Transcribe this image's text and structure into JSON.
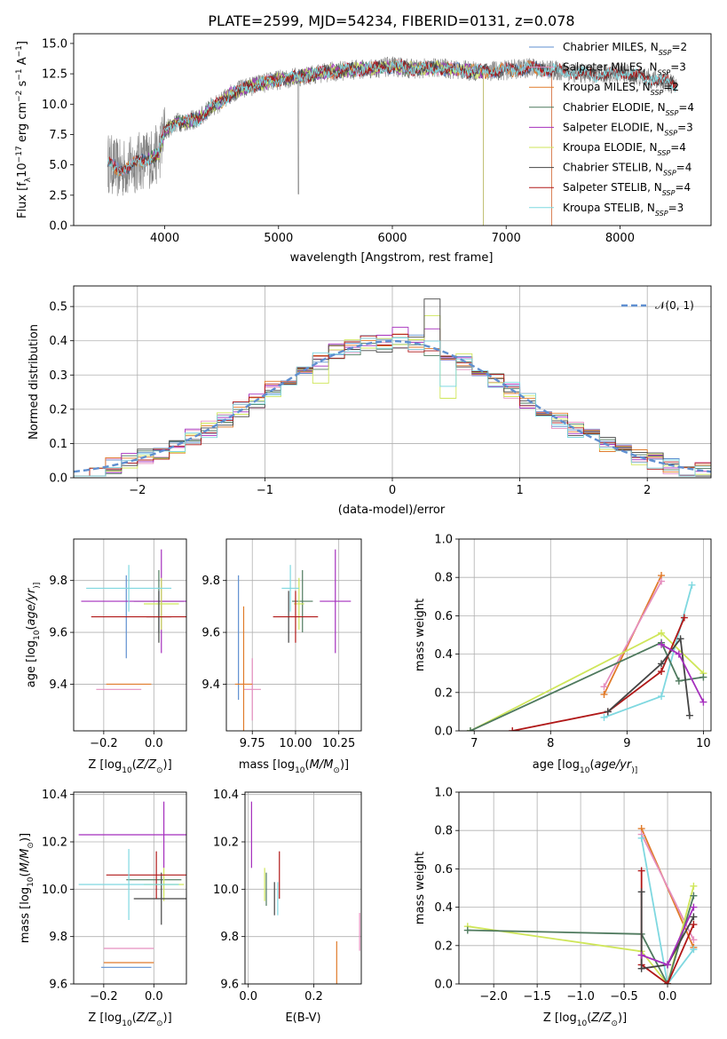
{
  "title": "PLATE=2599, MJD=54234, FIBERID=0131, z=0.078",
  "colors": {
    "chabrier_miles": "#5f8fd0",
    "salpeter_miles": "#e58fbf",
    "kroupa_miles": "#e07b2a",
    "chabrier_elodie": "#4f7a5e",
    "salpeter_elodie": "#a52fbd",
    "kroupa_elodie": "#cfe65a",
    "chabrier_stelib": "#444444",
    "salpeter_stelib": "#b01818",
    "kroupa_stelib": "#7fd8e0",
    "data": "#808080",
    "gaussian": "#5f8fd0"
  },
  "chart_data": [
    {
      "id": "spectrum",
      "type": "line",
      "title": "PLATE=2599, MJD=54234, FIBERID=0131, z=0.078",
      "xlabel": "wavelength [Angstrom, rest frame]",
      "ylabel": "Flux [f",
      "ylabel_parts": [
        "Flux [f",
        "λ",
        "10",
        "−17",
        " erg cm",
        "−2",
        " s",
        "−1",
        " A",
        "−1",
        "]"
      ],
      "xlim": [
        3200,
        8800
      ],
      "ylim": [
        0,
        15.8
      ],
      "xticks": [
        4000,
        5000,
        6000,
        7000,
        8000
      ],
      "yticks": [
        0.0,
        2.5,
        5.0,
        7.5,
        10.0,
        12.5,
        15.0
      ],
      "legend_position": "upper-right",
      "legend": [
        {
          "label": "Chabrier MILES, N",
          "sub": "SSP",
          "val": "=2",
          "color_key": "chabrier_miles"
        },
        {
          "label": "Salpeter MILES, N",
          "sub": "SSP",
          "val": "=3",
          "color_key": "salpeter_miles"
        },
        {
          "label": "Kroupa MILES, N",
          "sub": "SSP",
          "val": "=2",
          "color_key": "kroupa_miles"
        },
        {
          "label": "Chabrier ELODIE, N",
          "sub": "SSP",
          "val": "=4",
          "color_key": "chabrier_elodie"
        },
        {
          "label": "Salpeter ELODIE, N",
          "sub": "SSP",
          "val": "=3",
          "color_key": "salpeter_elodie"
        },
        {
          "label": "Kroupa ELODIE, N",
          "sub": "SSP",
          "val": "=4",
          "color_key": "kroupa_elodie"
        },
        {
          "label": "Chabrier STELIB, N",
          "sub": "SSP",
          "val": "=4",
          "color_key": "chabrier_stelib"
        },
        {
          "label": "Salpeter STELIB, N",
          "sub": "SSP",
          "val": "=4",
          "color_key": "salpeter_stelib"
        },
        {
          "label": "Kroupa STELIB, N",
          "sub": "SSP",
          "val": "=3",
          "color_key": "kroupa_stelib"
        }
      ],
      "continuum": {
        "x": [
          3500,
          3600,
          3700,
          3800,
          3900,
          3950,
          4000,
          4100,
          4200,
          4300,
          4400,
          4500,
          4600,
          4800,
          5000,
          5200,
          5400,
          5600,
          5800,
          6000,
          6200,
          6400,
          6600,
          6800,
          7000,
          7200,
          7400,
          7600,
          7800,
          8000,
          8200,
          8400,
          8500
        ],
        "y": [
          5.2,
          4.6,
          4.9,
          5.4,
          5.6,
          6.0,
          7.8,
          8.5,
          8.6,
          8.8,
          9.7,
          10.2,
          11.0,
          11.6,
          12.0,
          12.3,
          12.6,
          12.8,
          12.9,
          13.1,
          12.9,
          13.0,
          12.8,
          12.7,
          12.8,
          13.0,
          12.8,
          12.6,
          12.4,
          12.6,
          12.2,
          11.9,
          11.5
        ]
      },
      "model_x_ranges": {
        "chabrier_miles": [
          3500,
          7400
        ],
        "salpeter_miles": [
          3500,
          7400
        ],
        "kroupa_miles": [
          3500,
          7400
        ],
        "chabrier_elodie": [
          3850,
          6800
        ],
        "salpeter_elodie": [
          3850,
          6800
        ],
        "kroupa_elodie": [
          3850,
          6800
        ],
        "chabrier_stelib": [
          3500,
          8500
        ],
        "salpeter_stelib": [
          3500,
          8500
        ],
        "kroupa_stelib": [
          3500,
          8500
        ]
      },
      "data_noise_amplitude": 1.4,
      "data_dips_x": [
        5175,
        6800
      ]
    },
    {
      "id": "residuals",
      "type": "histogram",
      "xlabel": "(data-model)/error",
      "ylabel": "Normed distribution",
      "xlim": [
        -2.5,
        2.5
      ],
      "ylim": [
        0,
        0.56
      ],
      "xticks": [
        -2,
        -1,
        0,
        1,
        2
      ],
      "yticks": [
        0.0,
        0.1,
        0.2,
        0.3,
        0.4,
        0.5
      ],
      "grid": true,
      "legend_position": "upper-right",
      "legend": [
        {
          "label": "𝒩(0, 1)",
          "color_key": "gaussian",
          "style": "dashed"
        }
      ],
      "bin_width": 0.125,
      "gaussian": {
        "mean": 0,
        "sigma": 1
      },
      "deviations": {
        "salpeter_elodie": {
          "0.25": 0.05,
          "-0.5": 0.03,
          "0.0": 0.04
        },
        "kroupa_elodie": {
          "0.25": 0.11,
          "0.375": -0.12,
          "-0.625": -0.06
        },
        "chabrier_stelib": {
          "0.25": 0.13,
          "-0.125": -0.03
        },
        "kroupa_stelib": {
          "0.375": -0.09
        }
      }
    },
    {
      "id": "age_vs_Z",
      "type": "errorbar",
      "xlabel": "Z [log",
      "xlabel_parts": [
        "Z [log",
        "10",
        "(",
        "Z/Z",
        "⊙",
        ")]"
      ],
      "ylabel_parts": [
        "age  [log",
        "10",
        "(",
        "age/yr",
        ")]"
      ],
      "xlim": [
        -0.32,
        0.13
      ],
      "ylim": [
        9.22,
        9.96
      ],
      "xticks": [
        -0.2,
        0.0
      ],
      "xticklabels": [
        "−0.2",
        "0.0"
      ],
      "yticks": [
        9.4,
        9.6,
        9.8
      ],
      "points": [
        {
          "c": "chabrier_miles",
          "x": -0.11,
          "y": 9.66,
          "xerr": 0.0,
          "yerr": 0.16
        },
        {
          "c": "salpeter_miles",
          "x": -0.14,
          "y": 9.38,
          "xerr": 0.09,
          "yerr": 0.0
        },
        {
          "c": "kroupa_miles",
          "x": -0.1,
          "y": 9.4,
          "xerr": 0.09,
          "yerr": 0.0
        },
        {
          "c": "chabrier_elodie",
          "x": 0.02,
          "y": 9.72,
          "xerr": 0.1,
          "yerr": 0.12
        },
        {
          "c": "salpeter_elodie",
          "x": 0.03,
          "y": 9.72,
          "xerr": 0.32,
          "yerr": 0.2
        },
        {
          "c": "kroupa_elodie",
          "x": 0.03,
          "y": 9.71,
          "xerr": 0.07,
          "yerr": 0.1
        },
        {
          "c": "chabrier_stelib",
          "x": 0.02,
          "y": 9.66,
          "xerr": 0.05,
          "yerr": 0.1
        },
        {
          "c": "salpeter_stelib",
          "x": -0.05,
          "y": 9.66,
          "xerr": 0.2,
          "yerr": 0.0
        },
        {
          "c": "kroupa_stelib",
          "x": -0.1,
          "y": 9.77,
          "xerr": 0.17,
          "yerr": 0.09
        }
      ]
    },
    {
      "id": "age_vs_mass",
      "type": "errorbar",
      "xlabel_parts": [
        "mass [log",
        "10",
        "(",
        "M/M",
        "⊙",
        ")]"
      ],
      "xlim": [
        9.6,
        10.38
      ],
      "ylim": [
        9.22,
        9.96
      ],
      "xticks": [
        9.75,
        10.0,
        10.25
      ],
      "xticklabels": [
        "9.75",
        "10.00",
        "10.25"
      ],
      "yticks": [
        9.4,
        9.6,
        9.8
      ],
      "points": [
        {
          "c": "chabrier_miles",
          "x": 9.67,
          "y": 9.58,
          "xerr": 0.0,
          "yerr": 0.24
        },
        {
          "c": "salpeter_miles",
          "x": 9.75,
          "y": 9.38,
          "xerr": 0.05,
          "yerr": 0.12
        },
        {
          "c": "kroupa_miles",
          "x": 9.7,
          "y": 9.4,
          "xerr": 0.05,
          "yerr": 0.3
        },
        {
          "c": "chabrier_elodie",
          "x": 10.04,
          "y": 9.72,
          "xerr": 0.06,
          "yerr": 0.12
        },
        {
          "c": "salpeter_elodie",
          "x": 10.23,
          "y": 9.72,
          "xerr": 0.09,
          "yerr": 0.2
        },
        {
          "c": "kroupa_elodie",
          "x": 10.02,
          "y": 9.71,
          "xerr": 0.03,
          "yerr": 0.1
        },
        {
          "c": "chabrier_stelib",
          "x": 9.96,
          "y": 9.66,
          "xerr": 0.0,
          "yerr": 0.1
        },
        {
          "c": "salpeter_stelib",
          "x": 10.0,
          "y": 9.66,
          "xerr": 0.13,
          "yerr": 0.1
        },
        {
          "c": "kroupa_stelib",
          "x": 9.97,
          "y": 9.77,
          "xerr": 0.05,
          "yerr": 0.09
        }
      ]
    },
    {
      "id": "mass_weight_vs_age",
      "type": "line",
      "xlabel_parts": [
        "age  [log",
        "10",
        "(",
        "age/yr",
        ")]"
      ],
      "ylabel": "mass weight",
      "xlim": [
        6.8,
        10.1
      ],
      "ylim": [
        0,
        1
      ],
      "xticks": [
        7,
        8,
        9,
        10
      ],
      "yticks": [
        0.0,
        0.2,
        0.4,
        0.6,
        0.8,
        1.0
      ],
      "grid": true,
      "series": [
        {
          "c": "kroupa_miles",
          "x": [
            8.7,
            9.45
          ],
          "y": [
            0.19,
            0.81
          ]
        },
        {
          "c": "salpeter_miles",
          "x": [
            8.7,
            9.45
          ],
          "y": [
            0.23,
            0.78
          ]
        },
        {
          "c": "kroupa_stelib",
          "x": [
            8.7,
            9.45,
            9.85
          ],
          "y": [
            0.07,
            0.18,
            0.76
          ]
        },
        {
          "c": "kroupa_elodie",
          "x": [
            6.95,
            9.45,
            10.0
          ],
          "y": [
            0.0,
            0.51,
            0.3
          ]
        },
        {
          "c": "chabrier_elodie",
          "x": [
            6.95,
            9.45,
            9.68,
            10.0
          ],
          "y": [
            0.0,
            0.46,
            0.26,
            0.28
          ]
        },
        {
          "c": "salpeter_stelib",
          "x": [
            7.5,
            8.75,
            9.45,
            9.75
          ],
          "y": [
            0.0,
            0.1,
            0.31,
            0.59
          ]
        },
        {
          "c": "chabrier_stelib",
          "x": [
            8.75,
            9.45,
            9.7,
            9.82
          ],
          "y": [
            0.1,
            0.35,
            0.48,
            0.08
          ]
        },
        {
          "c": "salpeter_elodie",
          "x": [
            9.45,
            9.68,
            10.0
          ],
          "y": [
            0.45,
            0.4,
            0.15
          ]
        }
      ]
    },
    {
      "id": "mass_vs_Z",
      "type": "errorbar",
      "xlabel_parts": [
        "Z [log",
        "10",
        "(",
        "Z/Z",
        "⊙",
        ")]"
      ],
      "ylabel_parts": [
        "mass [log",
        "10",
        "(",
        "M/M",
        "⊙",
        ")]"
      ],
      "xlim": [
        -0.32,
        0.13
      ],
      "ylim": [
        9.6,
        10.41
      ],
      "xticks": [
        -0.2,
        0.0
      ],
      "xticklabels": [
        "−0.2",
        "0.0"
      ],
      "yticks": [
        9.6,
        9.8,
        10.0,
        10.2,
        10.4
      ],
      "points": [
        {
          "c": "chabrier_miles",
          "x": -0.11,
          "y": 9.67,
          "xerr": 0.1,
          "yerr": 0.0
        },
        {
          "c": "salpeter_miles",
          "x": -0.1,
          "y": 9.75,
          "xerr": 0.1,
          "yerr": 0.0
        },
        {
          "c": "kroupa_miles",
          "x": -0.1,
          "y": 9.69,
          "xerr": 0.1,
          "yerr": 0.0
        },
        {
          "c": "chabrier_elodie",
          "x": 0.0,
          "y": 10.04,
          "xerr": 0.11,
          "yerr": 0.0
        },
        {
          "c": "salpeter_elodie",
          "x": 0.04,
          "y": 10.23,
          "xerr": 0.34,
          "yerr": 0.14
        },
        {
          "c": "kroupa_elodie",
          "x": 0.04,
          "y": 10.02,
          "xerr": 0.08,
          "yerr": 0.07
        },
        {
          "c": "chabrier_stelib",
          "x": 0.03,
          "y": 9.96,
          "xerr": 0.11,
          "yerr": 0.11
        },
        {
          "c": "salpeter_stelib",
          "x": 0.01,
          "y": 10.06,
          "xerr": 0.2,
          "yerr": 0.1
        },
        {
          "c": "kroupa_stelib",
          "x": -0.1,
          "y": 10.02,
          "xerr": 0.2,
          "yerr": 0.15
        }
      ]
    },
    {
      "id": "mass_vs_ebv",
      "type": "errorbar",
      "xlabel": "E(B-V)",
      "xlim": [
        -0.01,
        0.345
      ],
      "ylim": [
        9.6,
        10.41
      ],
      "xticks": [
        0.0,
        0.2
      ],
      "xticklabels": [
        "0.0",
        "0.2"
      ],
      "yticks": [
        9.6,
        9.8,
        10.0,
        10.2,
        10.4
      ],
      "points": [
        {
          "c": "salpeter_elodie",
          "x": 0.01,
          "y": 10.23,
          "xerr": 0.0,
          "yerr": 0.14
        },
        {
          "c": "kroupa_elodie",
          "x": 0.05,
          "y": 10.02,
          "xerr": 0.0,
          "yerr": 0.07
        },
        {
          "c": "chabrier_elodie",
          "x": 0.055,
          "y": 10.0,
          "xerr": 0.0,
          "yerr": 0.07
        },
        {
          "c": "chabrier_stelib",
          "x": 0.08,
          "y": 9.96,
          "xerr": 0.0,
          "yerr": 0.07
        },
        {
          "c": "kroupa_stelib",
          "x": 0.09,
          "y": 9.96,
          "xerr": 0.0,
          "yerr": 0.07
        },
        {
          "c": "salpeter_stelib",
          "x": 0.095,
          "y": 10.06,
          "xerr": 0.0,
          "yerr": 0.1
        },
        {
          "c": "kroupa_miles",
          "x": 0.27,
          "y": 9.68,
          "xerr": 0.0,
          "yerr": 0.1
        },
        {
          "c": "salpeter_miles",
          "x": 0.34,
          "y": 9.82,
          "xerr": 0.0,
          "yerr": 0.08
        }
      ]
    },
    {
      "id": "mass_weight_vs_Z",
      "type": "line",
      "xlabel_parts": [
        "Z [log",
        "10",
        "(",
        "Z/Z",
        "⊙",
        ")]"
      ],
      "ylabel": "mass weight",
      "xlim": [
        -2.4,
        0.5
      ],
      "ylim": [
        0,
        1
      ],
      "xticks": [
        -2.0,
        -1.5,
        -1.0,
        -0.5,
        0.0
      ],
      "xticklabels": [
        "−2.0",
        "−1.5",
        "−1.0",
        "−0.5",
        "0.0"
      ],
      "yticks": [
        0.0,
        0.2,
        0.4,
        0.6,
        0.8,
        1.0
      ],
      "grid": true,
      "series": [
        {
          "c": "kroupa_miles",
          "x": [
            -0.3,
            0.3
          ],
          "y": [
            0.81,
            0.19
          ]
        },
        {
          "c": "salpeter_miles",
          "x": [
            -0.3,
            0.3
          ],
          "y": [
            0.78,
            0.23
          ]
        },
        {
          "c": "kroupa_stelib",
          "x": [
            -0.3,
            0.0,
            0.3
          ],
          "y": [
            0.76,
            0.0,
            0.18
          ]
        },
        {
          "c": "kroupa_elodie",
          "x": [
            -2.3,
            -0.3,
            0.0,
            0.3
          ],
          "y": [
            0.3,
            0.17,
            0.0,
            0.51
          ]
        },
        {
          "c": "chabrier_elodie",
          "x": [
            -2.3,
            -0.3,
            0.0,
            0.3
          ],
          "y": [
            0.28,
            0.26,
            0.0,
            0.46
          ]
        },
        {
          "c": "salpeter_stelib",
          "x": [
            -0.3,
            -0.3,
            0.0,
            0.3
          ],
          "y": [
            0.59,
            0.1,
            0.0,
            0.31
          ]
        },
        {
          "c": "chabrier_stelib",
          "x": [
            -0.3,
            -0.3,
            0.0,
            0.3
          ],
          "y": [
            0.48,
            0.08,
            0.1,
            0.35
          ]
        },
        {
          "c": "salpeter_elodie",
          "x": [
            -0.3,
            0.0,
            0.3
          ],
          "y": [
            0.15,
            0.1,
            0.4
          ]
        }
      ]
    }
  ]
}
